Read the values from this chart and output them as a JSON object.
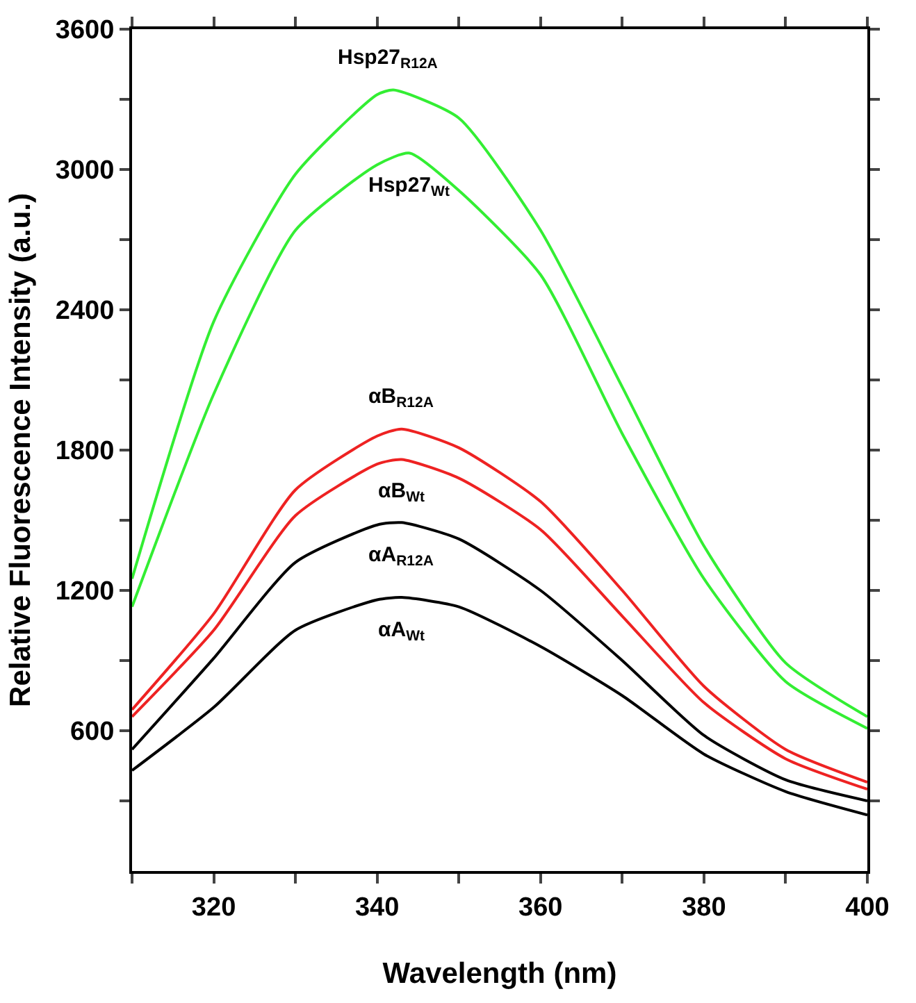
{
  "chart_data": {
    "type": "line",
    "xlabel": "Wavelength (nm)",
    "ylabel": "Relative Fluorescence Intensity (a.u.)",
    "xlim": [
      310,
      400
    ],
    "ylim": [
      0,
      3600
    ],
    "xticks": [
      {
        "value": 310,
        "label": null
      },
      320,
      {
        "value": 330,
        "label": null
      },
      340,
      {
        "value": 350,
        "label": null
      },
      360,
      {
        "value": 370,
        "label": null
      },
      380,
      {
        "value": 390,
        "label": null
      },
      400
    ],
    "yticks": [
      {
        "value": 300,
        "label": null
      },
      600,
      {
        "value": 900,
        "label": null
      },
      1200,
      {
        "value": 1500,
        "label": null
      },
      1800,
      {
        "value": 2100,
        "label": null
      },
      2400,
      {
        "value": 2700,
        "label": null
      },
      3000,
      {
        "value": 3300,
        "label": null
      },
      3600
    ],
    "legend": false,
    "marker": "none",
    "line_style": "solid",
    "x": [
      310,
      320,
      330,
      340,
      343,
      350,
      360,
      370,
      380,
      390,
      400
    ],
    "series": [
      {
        "name": "Hsp27$_{R12A}$",
        "color": "#33ee33",
        "x": [
          310,
          320,
          330,
          340,
          342,
          350,
          360,
          370,
          380,
          390,
          400
        ],
        "values": [
          1250,
          2350,
          2980,
          3320,
          3340,
          3220,
          2740,
          2070,
          1390,
          890,
          660
        ]
      },
      {
        "name": "Hsp27$_{Wt}$",
        "color": "#33ee33",
        "x": [
          310,
          320,
          330,
          340,
          344,
          350,
          360,
          370,
          380,
          390,
          400
        ],
        "values": [
          1130,
          2040,
          2740,
          3020,
          3070,
          2910,
          2550,
          1870,
          1250,
          810,
          610
        ]
      },
      {
        "name": "αB$_{R12A}$",
        "color": "#ee2222",
        "values": [
          690,
          1100,
          1630,
          1860,
          1890,
          1810,
          1580,
          1200,
          790,
          520,
          380
        ]
      },
      {
        "name": "αB$_{Wt}$",
        "color": "#ee2222",
        "values": [
          660,
          1030,
          1520,
          1740,
          1760,
          1680,
          1460,
          1090,
          720,
          480,
          350
        ]
      },
      {
        "name": "αA$_{R12A}$",
        "color": "#000000",
        "values": [
          520,
          910,
          1320,
          1480,
          1490,
          1420,
          1200,
          900,
          580,
          390,
          300
        ]
      },
      {
        "name": "αA$_{Wt}$",
        "color": "#000000",
        "values": [
          430,
          700,
          1030,
          1160,
          1170,
          1130,
          960,
          750,
          500,
          340,
          240
        ]
      }
    ]
  }
}
